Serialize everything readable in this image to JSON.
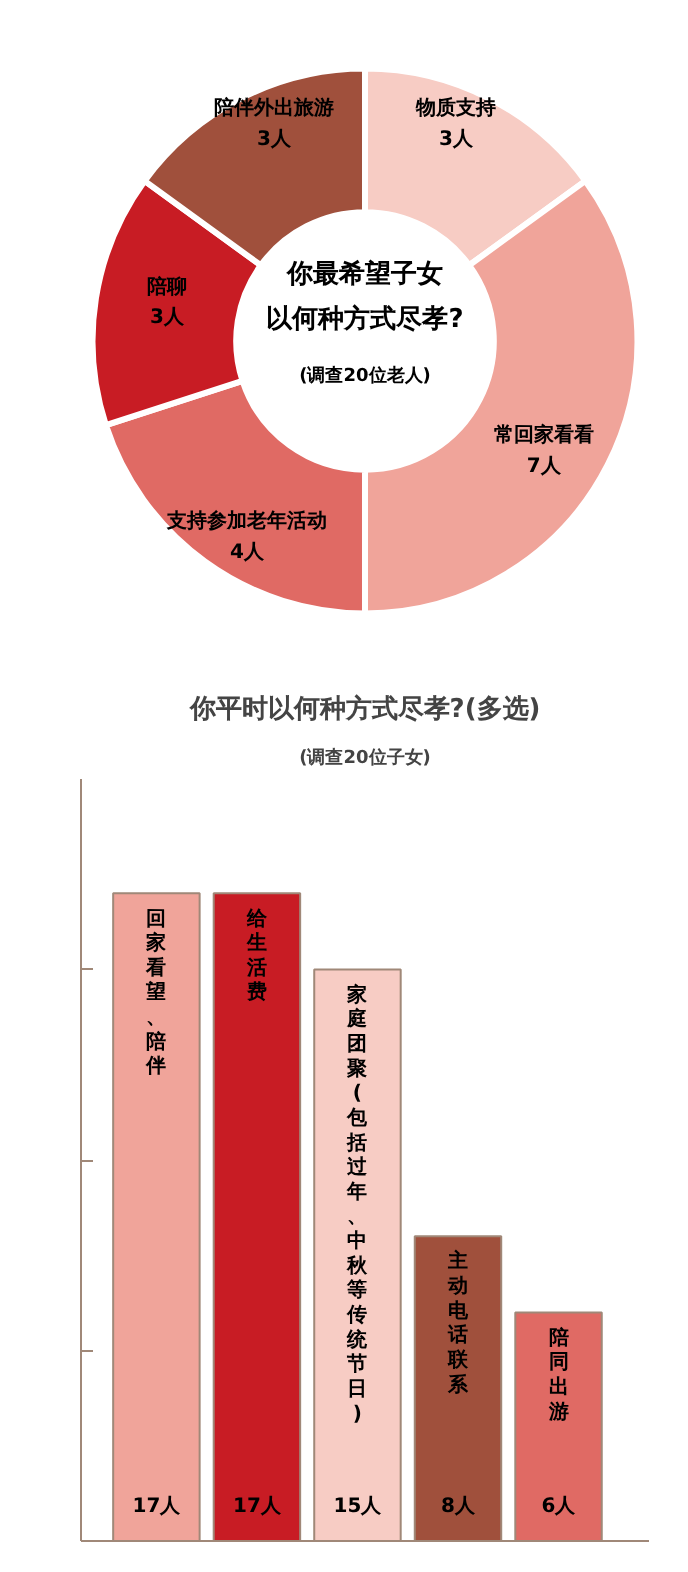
{
  "chart_data": [
    {
      "type": "donut",
      "title": "你最希望子女以何种方式尽孝?",
      "subtitle": "(调查20位老人)",
      "categories": [
        "物质支持",
        "常回家看看",
        "支持参加老年活动",
        "陪聊",
        "陪伴外出旅游"
      ],
      "values": [
        3,
        7,
        4,
        3,
        3
      ],
      "value_labels": [
        "3人",
        "7人",
        "4人",
        "3人",
        "3人"
      ],
      "colors": [
        "#f7ccc4",
        "#f0a49a",
        "#e06a64",
        "#c81c24",
        "#a0503c"
      ]
    },
    {
      "type": "bar",
      "title": "你平时以何种方式尽孝?(多选)",
      "subtitle": "(调查20位子女)",
      "categories": [
        "回家看望、陪伴",
        "给生活费",
        "家庭团聚(包括过年、中秋等传统节日)",
        "主动电话联系",
        "陪同出游"
      ],
      "values": [
        17,
        17,
        15,
        8,
        6
      ],
      "value_labels": [
        "17人",
        "17人",
        "15人",
        "8人",
        "6人"
      ],
      "colors": [
        "#f0a49a",
        "#c81c24",
        "#f7ccc4",
        "#a0503c",
        "#e06a64"
      ],
      "ylim": [
        0,
        20
      ],
      "yticks": [
        {
          "value": 5,
          "label": null
        },
        {
          "value": 10,
          "label": null
        },
        {
          "value": 15,
          "label": null
        }
      ],
      "grid": false
    }
  ]
}
